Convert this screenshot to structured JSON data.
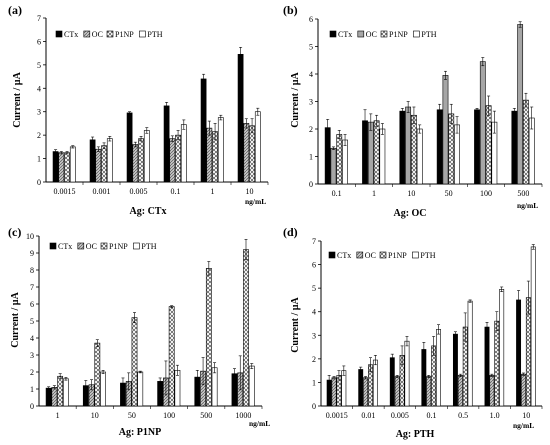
{
  "colors": {
    "black": "#000000",
    "gray": "#a6a6a6",
    "white": "#ffffff",
    "axis": "#000000"
  },
  "chart_data": [
    {
      "type": "bar",
      "panel": "(a)",
      "xlabel": "Ag: CTx",
      "ylabel": "Current / µA",
      "unit": "ng/mL",
      "ylim": [
        0,
        7
      ],
      "yticks": [
        0,
        1,
        2,
        3,
        4,
        5,
        6,
        7
      ],
      "categories": [
        "0.0015",
        "0.001",
        "0.005",
        "0.1",
        "1",
        "10"
      ],
      "legend": "top-left",
      "series": [
        {
          "name": "CTx",
          "fill": "solid-black",
          "values": [
            1.3,
            1.8,
            2.95,
            3.25,
            4.4,
            5.45
          ],
          "errors": [
            0.08,
            0.12,
            0.05,
            0.15,
            0.2,
            0.3
          ]
        },
        {
          "name": "OC",
          "fill": "gray-hatch",
          "values": [
            1.25,
            1.4,
            1.6,
            1.85,
            2.3,
            2.5
          ],
          "errors": [
            0.05,
            0.1,
            0.1,
            0.12,
            0.3,
            0.2
          ]
        },
        {
          "name": "P1NP",
          "fill": "crosshatch",
          "values": [
            1.25,
            1.55,
            1.85,
            2.0,
            2.15,
            2.4
          ],
          "errors": [
            0.05,
            0.12,
            0.1,
            0.2,
            0.35,
            0.3
          ]
        },
        {
          "name": "PTH",
          "fill": "white",
          "values": [
            1.5,
            1.85,
            2.2,
            2.45,
            2.75,
            3.0
          ],
          "errors": [
            0.05,
            0.1,
            0.12,
            0.2,
            0.1,
            0.15
          ]
        }
      ]
    },
    {
      "type": "bar",
      "panel": "(b)",
      "xlabel": "Ag: OC",
      "ylabel": "Current / µA",
      "unit": "ng/mL",
      "ylim": [
        0,
        6
      ],
      "yticks": [
        0,
        1,
        2,
        3,
        4,
        5,
        6
      ],
      "categories": [
        "0.1",
        "1",
        "10",
        "50",
        "100",
        "500"
      ],
      "legend": "top-left",
      "series": [
        {
          "name": "CTx",
          "fill": "solid-black",
          "values": [
            2.05,
            2.3,
            2.65,
            2.7,
            2.7,
            2.65
          ],
          "errors": [
            0.3,
            0.4,
            0.1,
            0.2,
            0.05,
            0.1
          ]
        },
        {
          "name": "OC",
          "fill": "gray",
          "values": [
            1.3,
            2.25,
            2.8,
            3.95,
            4.45,
            5.8
          ],
          "errors": [
            0.05,
            0.3,
            0.2,
            0.15,
            0.15,
            0.1
          ]
        },
        {
          "name": "P1NP",
          "fill": "crosshatch",
          "values": [
            1.8,
            2.3,
            2.5,
            2.55,
            2.85,
            3.05
          ],
          "errors": [
            0.15,
            0.2,
            0.3,
            0.35,
            0.35,
            0.25
          ]
        },
        {
          "name": "PTH",
          "fill": "white",
          "values": [
            1.6,
            2.0,
            2.0,
            2.15,
            2.25,
            2.4
          ],
          "errors": [
            0.2,
            0.2,
            0.15,
            0.3,
            0.4,
            0.4
          ]
        }
      ]
    },
    {
      "type": "bar",
      "panel": "(c)",
      "xlabel": "Ag: P1NP",
      "ylabel": "Current / µA",
      "unit": "ng/mL",
      "ylim": [
        0,
        10
      ],
      "yticks": [
        0,
        1,
        2,
        3,
        4,
        5,
        6,
        7,
        8,
        9,
        10
      ],
      "categories": [
        "1",
        "10",
        "50",
        "100",
        "500",
        "1000"
      ],
      "legend": "top-left",
      "series": [
        {
          "name": "CTx",
          "fill": "solid-black",
          "values": [
            1.05,
            1.2,
            1.35,
            1.45,
            1.7,
            1.9
          ],
          "errors": [
            0.08,
            0.3,
            0.3,
            0.2,
            0.4,
            0.3
          ]
        },
        {
          "name": "OC",
          "fill": "gray-hatch",
          "values": [
            1.1,
            1.25,
            1.45,
            1.65,
            2.05,
            1.95
          ],
          "errors": [
            0.1,
            0.3,
            0.5,
            1.0,
            0.8,
            1.0
          ]
        },
        {
          "name": "P1NP",
          "fill": "crosshatch",
          "values": [
            1.75,
            3.7,
            5.2,
            5.85,
            8.1,
            9.2
          ],
          "errors": [
            0.15,
            0.2,
            0.3,
            0.05,
            0.4,
            0.6
          ]
        },
        {
          "name": "PTH",
          "fill": "white",
          "values": [
            1.6,
            2.0,
            2.0,
            2.1,
            2.25,
            2.35
          ],
          "errors": [
            0.08,
            0.1,
            0.05,
            0.3,
            0.3,
            0.15
          ]
        }
      ]
    },
    {
      "type": "bar",
      "panel": "(d)",
      "xlabel": "Ag: PTH",
      "ylabel": "Current / µA",
      "unit": "ng/mL",
      "ylim": [
        0,
        7
      ],
      "yticks": [
        0,
        1,
        2,
        3,
        4,
        5,
        6,
        7
      ],
      "categories": [
        "0.0015",
        "0.01",
        "0.005",
        "0.1",
        "0.5",
        "1.0",
        "10"
      ],
      "legend": "top-left",
      "series": [
        {
          "name": "CTx",
          "fill": "solid-black",
          "values": [
            1.1,
            1.55,
            2.05,
            2.4,
            3.05,
            3.35,
            4.5
          ],
          "errors": [
            0.2,
            0.1,
            0.15,
            0.3,
            0.1,
            0.2,
            0.4
          ]
        },
        {
          "name": "OC",
          "fill": "gray-hatch",
          "values": [
            1.2,
            1.2,
            1.25,
            1.25,
            1.3,
            1.3,
            1.35
          ],
          "errors": [
            0.05,
            0.05,
            0.05,
            0.05,
            0.05,
            0.05,
            0.05
          ]
        },
        {
          "name": "P1NP",
          "fill": "crosshatch",
          "values": [
            1.3,
            1.75,
            2.15,
            2.55,
            3.35,
            3.6,
            4.6
          ],
          "errors": [
            0.2,
            0.3,
            0.4,
            0.4,
            0.6,
            0.4,
            0.7
          ]
        },
        {
          "name": "PTH",
          "fill": "white",
          "values": [
            1.5,
            1.95,
            2.75,
            3.25,
            4.45,
            4.95,
            6.75
          ],
          "errors": [
            0.2,
            0.2,
            0.2,
            0.2,
            0.05,
            0.1,
            0.1
          ]
        }
      ]
    }
  ]
}
